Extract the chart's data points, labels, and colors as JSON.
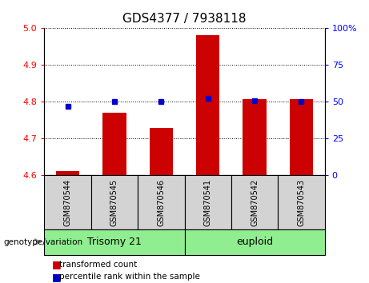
{
  "title": "GDS4377 / 7938118",
  "samples": [
    "GSM870544",
    "GSM870545",
    "GSM870546",
    "GSM870541",
    "GSM870542",
    "GSM870543"
  ],
  "red_values": [
    4.612,
    4.77,
    4.73,
    4.982,
    4.808,
    4.808
  ],
  "blue_values": [
    47.0,
    50.5,
    50.0,
    52.5,
    51.0,
    50.5
  ],
  "ylim_left": [
    4.6,
    5.0
  ],
  "ylim_right": [
    0,
    100
  ],
  "yticks_left": [
    4.6,
    4.7,
    4.8,
    4.9,
    5.0
  ],
  "yticks_right": [
    0,
    25,
    50,
    75,
    100
  ],
  "ytick_labels_right": [
    "0",
    "25",
    "50",
    "75",
    "100%"
  ],
  "bar_color": "#cc0000",
  "dot_color": "#0000cc",
  "bar_width": 0.5,
  "baseline": 4.6,
  "group_label": "genotype/variation",
  "group1_label": "Trisomy 21",
  "group2_label": "euploid",
  "group_color": "#90ee90",
  "label_box_color": "#d3d3d3",
  "legend_red_label": "transformed count",
  "legend_blue_label": "percentile rank within the sample"
}
